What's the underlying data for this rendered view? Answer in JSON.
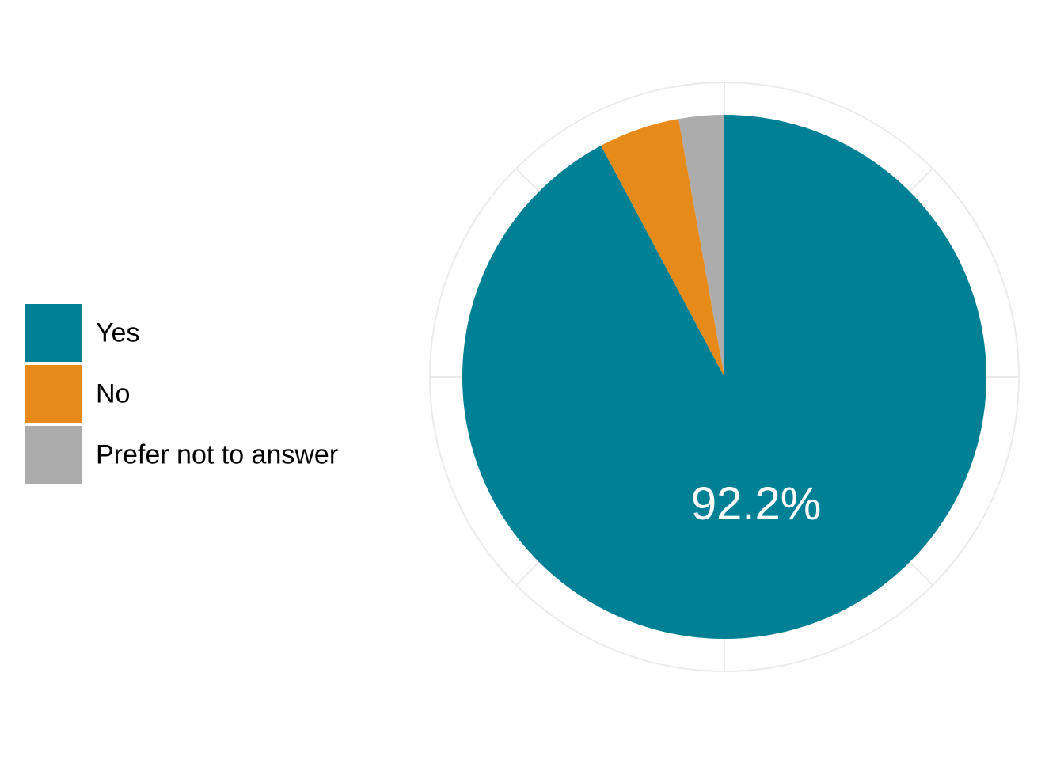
{
  "chart_data": {
    "type": "pie",
    "categories": [
      "Yes",
      "No",
      "Prefer not to answer"
    ],
    "values": [
      92.2,
      5.0,
      2.8
    ],
    "colors": [
      "#008094",
      "#e68a19",
      "#acacac"
    ],
    "value_labels": [
      "92.2%",
      "",
      ""
    ],
    "start_angle": "12 o'clock",
    "direction": "clockwise",
    "legend": "left",
    "grid": true
  }
}
